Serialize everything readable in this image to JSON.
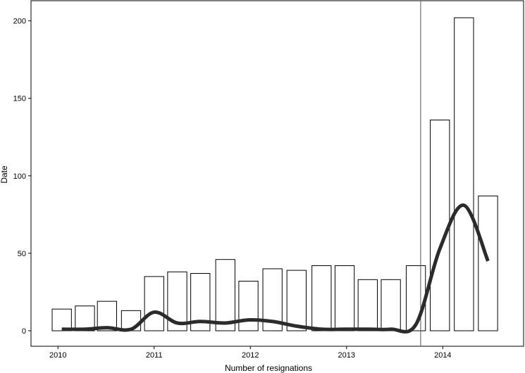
{
  "chart_data": {
    "type": "bar",
    "title": "",
    "xlabel": "Number of resignations",
    "ylabel": "Date",
    "x_ticks": [
      2010,
      2011,
      2012,
      2013,
      2014
    ],
    "x_tick_labels": [
      "2010",
      "2011",
      "2012",
      "2013",
      "2014"
    ],
    "y_ticks": [
      0,
      50,
      100,
      150,
      200
    ],
    "y_tick_labels": [
      "0",
      "50",
      "100",
      "150",
      "200"
    ],
    "xlim": [
      2009.72,
      2014.84
    ],
    "ylim": [
      -10,
      213
    ],
    "grid": false,
    "legend": "none",
    "colors": {
      "bar_fill": "#ffffff",
      "bar_stroke": "#000000",
      "line": "#2b2b2b",
      "vline": "#555555"
    },
    "bar_width_years": 0.2,
    "series": [
      {
        "type": "bar",
        "x": [
          2010.04,
          2010.28,
          2010.51,
          2010.76,
          2011.0,
          2011.24,
          2011.48,
          2011.74,
          2011.98,
          2012.23,
          2012.48,
          2012.74,
          2012.98,
          2013.22,
          2013.46,
          2013.72,
          2013.97,
          2014.22,
          2014.47
        ],
        "values": [
          14,
          16,
          19,
          13,
          35,
          38,
          37,
          46,
          32,
          40,
          39,
          42,
          42,
          33,
          33,
          42,
          136,
          202,
          87
        ]
      },
      {
        "type": "line",
        "x": [
          2010.04,
          2010.28,
          2010.51,
          2010.76,
          2011.0,
          2011.24,
          2011.48,
          2011.74,
          2011.98,
          2012.23,
          2012.48,
          2012.74,
          2012.98,
          2013.22,
          2013.46,
          2013.72,
          2013.97,
          2014.22,
          2014.47
        ],
        "values": [
          1,
          1,
          2,
          1,
          12,
          5,
          6,
          5,
          7,
          6,
          3,
          1,
          1,
          1,
          1,
          4,
          53,
          81,
          45
        ]
      }
    ],
    "vertical_line_x": 2013.77
  }
}
